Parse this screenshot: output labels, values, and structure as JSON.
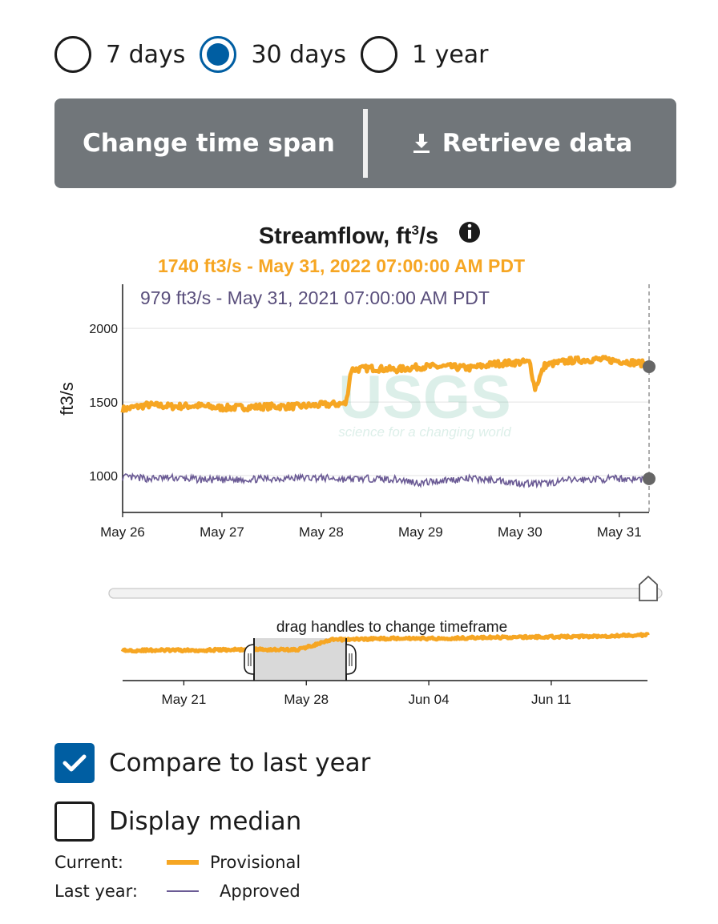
{
  "time_span": {
    "options": [
      {
        "label": "7 days",
        "checked": false
      },
      {
        "label": "30 days",
        "checked": true
      },
      {
        "label": "1 year",
        "checked": false
      }
    ]
  },
  "toolbar": {
    "change_label": "Change time span",
    "retrieve_label": "Retrieve data",
    "retrieve_icon": "download-icon"
  },
  "colors": {
    "current": "#f6a623",
    "last_year": "#6b5b95",
    "button_bg": "#71767a",
    "accent": "#005ea2"
  },
  "chart_data": [
    {
      "type": "line",
      "title": "Streamflow, ft",
      "title_sup": "3",
      "title_suffix": "/s",
      "info_icon": "info-icon",
      "readout_current": "1740 ft3/s - May 31, 2022 07:00:00 AM PDT",
      "readout_last_year": "979 ft3/s - May 31, 2021 07:00:00 AM PDT",
      "ylabel": "ft3/s",
      "ylim": [
        750,
        2300
      ],
      "y_ticks": [
        "1000",
        "1500",
        "2000"
      ],
      "x_ticks": [
        "May 26",
        "May 27",
        "May 28",
        "May 29",
        "May 30",
        "May 31"
      ],
      "xlim_days": [
        0,
        5.3
      ],
      "grid": "horizontal",
      "watermark": "USGS",
      "watermark_tagline": "science for a changing world",
      "series": [
        {
          "name": "Current",
          "approval": "Provisional",
          "x": [
            0,
            0.25,
            0.5,
            0.75,
            1.0,
            1.25,
            1.5,
            1.75,
            2.0,
            2.25,
            2.3,
            2.5,
            2.75,
            3.0,
            3.25,
            3.5,
            3.75,
            4.0,
            4.1,
            4.15,
            4.25,
            4.5,
            4.75,
            5.0,
            5.25,
            5.3
          ],
          "values": [
            1450,
            1480,
            1470,
            1475,
            1460,
            1465,
            1470,
            1470,
            1480,
            1490,
            1720,
            1730,
            1720,
            1740,
            1740,
            1730,
            1760,
            1770,
            1770,
            1590,
            1750,
            1780,
            1790,
            1780,
            1760,
            1740
          ]
        },
        {
          "name": "Last year",
          "approval": "Approved",
          "x": [
            0,
            0.25,
            0.5,
            0.75,
            1.0,
            1.25,
            1.5,
            1.75,
            2.0,
            2.25,
            2.5,
            2.75,
            3.0,
            3.25,
            3.5,
            3.75,
            4.0,
            4.25,
            4.5,
            4.75,
            5.0,
            5.25,
            5.3
          ],
          "values": [
            990,
            980,
            985,
            975,
            970,
            975,
            980,
            985,
            985,
            975,
            980,
            975,
            950,
            970,
            980,
            970,
            950,
            945,
            970,
            975,
            980,
            975,
            979
          ]
        }
      ]
    },
    {
      "type": "line",
      "role": "brush",
      "caption": "drag handles to change timeframe",
      "x_ticks": [
        "May 21",
        "May 28",
        "Jun 04",
        "Jun 11"
      ],
      "series": [
        {
          "name": "Current",
          "x": [
            0,
            2,
            4,
            6,
            8,
            10,
            12,
            14,
            16,
            18,
            20,
            22,
            24,
            26,
            28,
            30
          ],
          "values": [
            1450,
            1460,
            1455,
            1470,
            1480,
            1470,
            1720,
            1740,
            1760,
            1750,
            1770,
            1780,
            1790,
            1800,
            1820,
            1840
          ]
        }
      ]
    }
  ],
  "options": {
    "compare_label": "Compare to last year",
    "compare_checked": true,
    "median_label": "Display median",
    "median_checked": false
  },
  "legend": {
    "current_label": "Current:",
    "current_item": "Provisional",
    "last_year_label": "Last year:",
    "last_year_item": "Approved"
  }
}
